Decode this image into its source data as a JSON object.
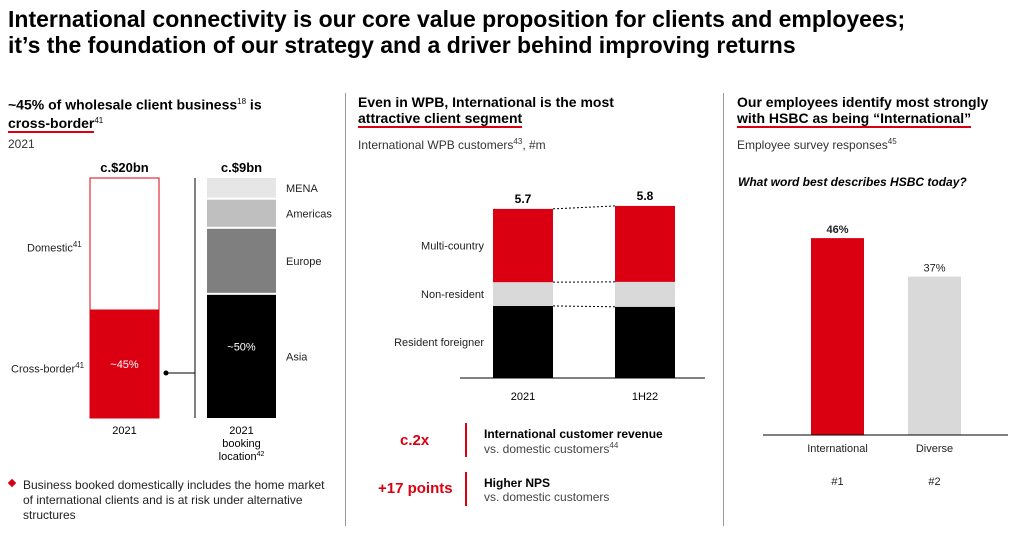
{
  "title": {
    "line1": "International connectivity is our core value proposition for clients and employees;",
    "line2": "it’s the foundation of our strategy and a driver behind improving returns"
  },
  "panel1": {
    "heading_a": "~45% of wholesale client business",
    "heading_sup1": "18",
    "heading_b": " is",
    "heading_c": "cross-border",
    "heading_sup2": "41",
    "year": "2021",
    "domestic_label": "Domestic",
    "domestic_sup": "41",
    "crossborder_label": "Cross-border",
    "crossborder_sup": "41",
    "bullet_text": "Business booked domestically includes the home market of international clients and is at risk under alternative structures",
    "bullet_color": "#db0011"
  },
  "panel2": {
    "heading_line1": "Even in WPB, International is the most",
    "heading_line2": "attractive client segment",
    "subtitle": "International WPB customers",
    "subtitle_sup": "43",
    "subtitle_unit": ", #m",
    "metric1_value": "c.2x",
    "metric1_title": "International customer revenue",
    "metric1_desc": "vs. domestic customers",
    "metric1_sup": "44",
    "metric2_value": "+17 points",
    "metric2_title": "Higher NPS",
    "metric2_desc": "vs. domestic customers"
  },
  "panel3": {
    "heading_line1": "Our employees identify most strongly",
    "heading_line2": "with HSBC as being “International”",
    "subtitle": "Employee survey responses",
    "subtitle_sup": "45",
    "question": "What word best describes HSBC today?"
  },
  "colors": {
    "red": "#db0011",
    "black": "#000000",
    "light_grey": "#d9d9d9",
    "grey": "#bfbfbf",
    "dark_grey": "#7f7f7f",
    "lightest_grey": "#e6e6e6"
  },
  "chart_data": [
    {
      "type": "bar",
      "id": "wholesale-split",
      "stacked": true,
      "categories": [
        "2021"
      ],
      "total_label": "c.$20bn",
      "series": [
        {
          "name": "Cross-border",
          "values": [
            45
          ],
          "label": "~45%"
        },
        {
          "name": "Domestic",
          "values": [
            55
          ]
        }
      ]
    },
    {
      "type": "bar",
      "id": "booking-location",
      "stacked": true,
      "categories": [
        "2021 booking location"
      ],
      "category_lines": [
        "2021",
        "booking",
        "location"
      ],
      "category_sup": "42",
      "total_label": "c.$9bn",
      "series": [
        {
          "name": "Asia",
          "values": [
            50
          ],
          "label": "~50%"
        },
        {
          "name": "Europe",
          "values": [
            26
          ]
        },
        {
          "name": "Americas",
          "values": [
            11
          ]
        },
        {
          "name": "MENA",
          "values": [
            8
          ]
        }
      ]
    },
    {
      "type": "bar",
      "id": "wpb-customers",
      "stacked": true,
      "categories": [
        "2021",
        "1H22"
      ],
      "totals": [
        "5.7",
        "5.8"
      ],
      "total_values": [
        5.7,
        5.8
      ],
      "series": [
        {
          "name": "Resident foreigner",
          "values": [
            2.43,
            2.4
          ]
        },
        {
          "name": "Non-resident",
          "values": [
            0.8,
            0.84
          ]
        },
        {
          "name": "Multi-country",
          "values": [
            2.47,
            2.56
          ]
        }
      ]
    },
    {
      "type": "bar",
      "id": "employee-survey",
      "categories": [
        "International",
        "Diverse"
      ],
      "ranks": [
        "#1",
        "#2"
      ],
      "values": [
        46,
        37
      ],
      "value_labels": [
        "46%",
        "37%"
      ],
      "ylim": [
        0,
        50
      ]
    }
  ]
}
